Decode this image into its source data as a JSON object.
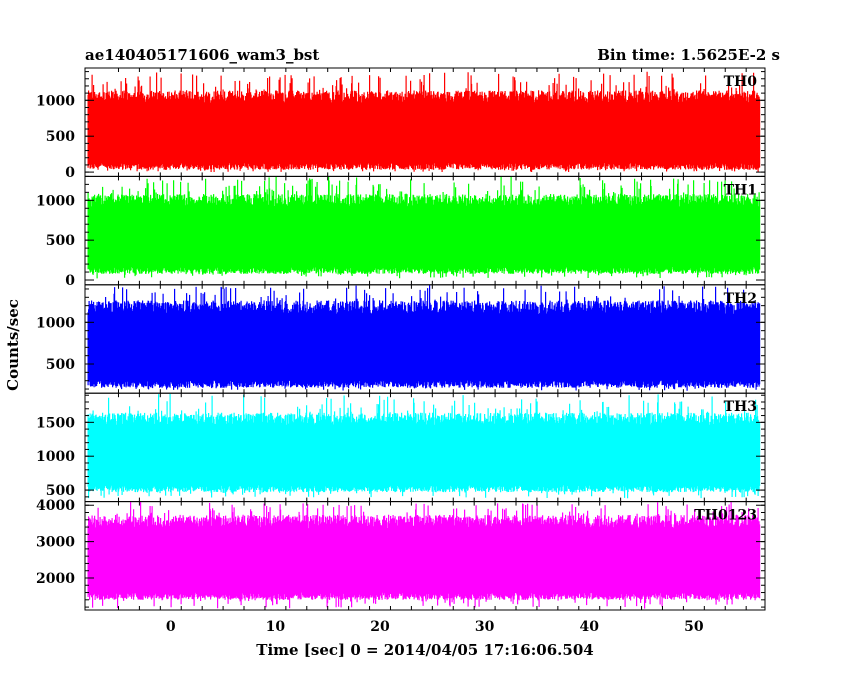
{
  "chart_data": {
    "type": "line",
    "title_left": "ae140405171606_wam3_bst",
    "title_right": "Bin time: 1.5625E-2 s",
    "xlabel": "Time [sec] 0 = 2014/04/05 17:16:06.504",
    "ylabel": "Counts/sec",
    "xlim": [
      -8.2,
      56.8
    ],
    "data_xrange": [
      -7.9,
      56.3
    ],
    "xticks": [
      0,
      10,
      20,
      30,
      40,
      50
    ],
    "xtick_labels": [
      "0",
      "10",
      "20",
      "30",
      "40",
      "50"
    ],
    "panels": [
      {
        "label": "TH0",
        "color": "#ff0000",
        "ylim": [
          -60,
          1450
        ],
        "yticks": [
          0,
          500,
          1000
        ],
        "ytick_labels": [
          "0",
          "500",
          "1000"
        ],
        "base_low": 80,
        "base_high": 1050,
        "min_low": 0,
        "max_high": 1400
      },
      {
        "label": "TH1",
        "color": "#00ff00",
        "ylim": [
          -60,
          1300
        ],
        "yticks": [
          0,
          500,
          1000
        ],
        "ytick_labels": [
          "0",
          "500",
          "1000"
        ],
        "base_low": 120,
        "base_high": 1000,
        "min_low": 20,
        "max_high": 1300
      },
      {
        "label": "TH2",
        "color": "#0000ff",
        "ylim": [
          150,
          1450
        ],
        "yticks": [
          500,
          1000
        ],
        "ytick_labels": [
          "500",
          "1000"
        ],
        "base_low": 260,
        "base_high": 1180,
        "min_low": 180,
        "max_high": 1450
      },
      {
        "label": "TH3",
        "color": "#00ffff",
        "ylim": [
          330,
          1930
        ],
        "yticks": [
          500,
          1000,
          1500
        ],
        "ytick_labels": [
          "500",
          "1000",
          "1500"
        ],
        "base_low": 520,
        "base_high": 1550,
        "min_low": 380,
        "max_high": 1930
      },
      {
        "label": "TH0123",
        "color": "#ff00ff",
        "ylim": [
          1120,
          4100
        ],
        "yticks": [
          2000,
          3000,
          4000
        ],
        "ytick_labels": [
          "2000",
          "3000",
          "4000"
        ],
        "base_low": 1500,
        "base_high": 3550,
        "min_low": 1150,
        "max_high": 4100
      }
    ]
  }
}
